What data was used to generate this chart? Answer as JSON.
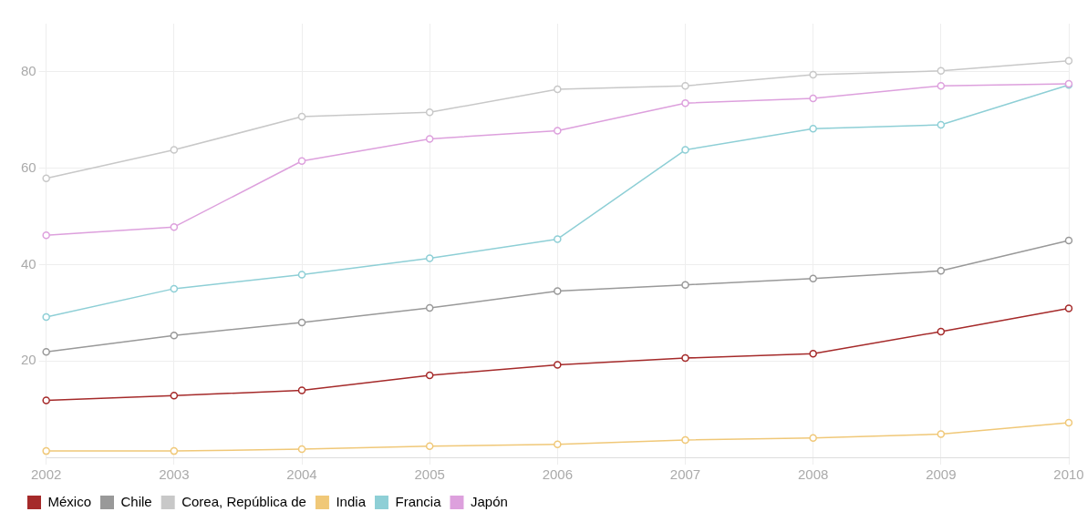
{
  "chart_data": {
    "type": "line",
    "categories": [
      "2002",
      "2003",
      "2004",
      "2005",
      "2006",
      "2007",
      "2008",
      "2009",
      "2010"
    ],
    "series": [
      {
        "name": "México",
        "color": "#a52a2a",
        "values": [
          11.8,
          12.8,
          13.9,
          17.0,
          19.2,
          20.6,
          21.5,
          26.1,
          30.9
        ]
      },
      {
        "name": "Chile",
        "color": "#999999",
        "values": [
          21.9,
          25.3,
          28.0,
          31.0,
          34.5,
          35.8,
          37.1,
          38.7,
          45.0
        ]
      },
      {
        "name": "Corea, República de",
        "color": "#c8c8c8",
        "values": [
          57.9,
          63.8,
          70.7,
          71.6,
          76.4,
          77.1,
          79.4,
          80.2,
          82.3
        ]
      },
      {
        "name": "India",
        "color": "#f0c878",
        "values": [
          1.3,
          1.3,
          1.7,
          2.3,
          2.7,
          3.6,
          4.0,
          4.8,
          7.2
        ]
      },
      {
        "name": "Francia",
        "color": "#8ecfd6",
        "values": [
          29.1,
          35.0,
          37.9,
          41.3,
          45.3,
          63.8,
          68.2,
          69.0,
          77.3
        ]
      },
      {
        "name": "Japón",
        "color": "#dda0dd",
        "values": [
          46.1,
          47.8,
          61.5,
          66.1,
          67.8,
          73.5,
          74.5,
          77.1,
          77.5
        ]
      }
    ],
    "ylim": [
      0,
      90
    ],
    "yticks": [
      20,
      40,
      60,
      80
    ],
    "grid": true,
    "legend": "bottom left",
    "marker": "circle",
    "line_style": "solid"
  }
}
